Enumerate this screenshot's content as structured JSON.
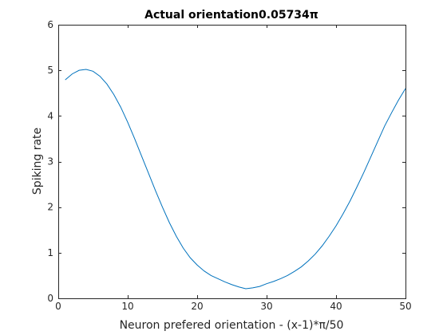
{
  "chart_data": {
    "type": "line",
    "title": "Actual orientation0.05734π",
    "xlabel": "Neuron prefered orientation - (x-1)*π/50",
    "ylabel": "Spiking rate",
    "xlim": [
      0,
      50
    ],
    "ylim": [
      0,
      6
    ],
    "xticks": [
      0,
      10,
      20,
      30,
      40,
      50
    ],
    "yticks": [
      0,
      1,
      2,
      3,
      4,
      5,
      6
    ],
    "grid": false,
    "colors": {
      "line": "#0072bd",
      "axis": "#262626"
    },
    "series": [
      {
        "x": [
          1,
          2,
          3,
          4,
          5,
          6,
          7,
          8,
          9,
          10,
          11,
          12,
          13,
          14,
          15,
          16,
          17,
          18,
          19,
          20,
          21,
          22,
          23,
          24,
          25,
          26,
          27,
          28,
          29,
          30,
          31,
          32,
          33,
          34,
          35,
          36,
          37,
          38,
          39,
          40,
          41,
          42,
          43,
          44,
          45,
          46,
          47,
          48,
          49,
          50
        ],
        "values": [
          4.79,
          4.92,
          5.0,
          5.02,
          4.98,
          4.87,
          4.7,
          4.47,
          4.19,
          3.86,
          3.5,
          3.12,
          2.74,
          2.36,
          2.0,
          1.66,
          1.36,
          1.1,
          0.89,
          0.73,
          0.6,
          0.5,
          0.43,
          0.36,
          0.3,
          0.25,
          0.21,
          0.23,
          0.26,
          0.32,
          0.37,
          0.43,
          0.5,
          0.59,
          0.69,
          0.82,
          0.97,
          1.15,
          1.36,
          1.59,
          1.85,
          2.13,
          2.44,
          2.76,
          3.1,
          3.44,
          3.78,
          4.07,
          4.35,
          4.6
        ]
      }
    ]
  }
}
